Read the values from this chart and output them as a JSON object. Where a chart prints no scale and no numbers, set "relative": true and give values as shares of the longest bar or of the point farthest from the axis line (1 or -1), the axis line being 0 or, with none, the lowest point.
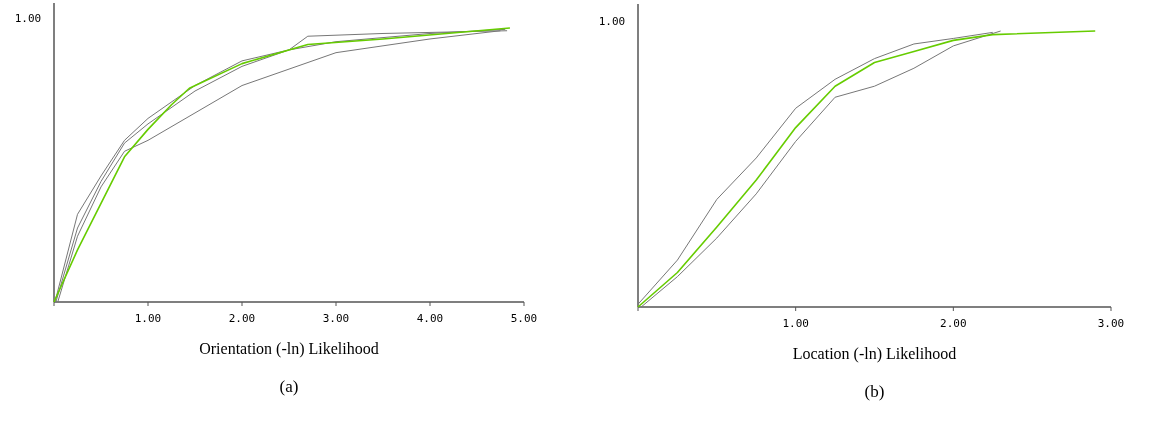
{
  "chart_data": [
    {
      "type": "line",
      "xlabel": "Orientation (-ln) Likelihood",
      "annotations": [
        "1.00",
        "(a)"
      ],
      "xlim": [
        0,
        5
      ],
      "relative": true,
      "xticks": [
        {
          "value": 0,
          "label": null
        },
        {
          "value": 1,
          "label": "1.00"
        },
        {
          "value": 2,
          "label": "2.00"
        },
        {
          "value": 3,
          "label": "3.00"
        },
        {
          "value": 4,
          "label": "4.00"
        },
        {
          "value": 5,
          "label": "5.00"
        }
      ],
      "series": [
        {
          "color": "#777777",
          "x": [
            0.01,
            0.25,
            0.5,
            0.75,
            1.0,
            1.5,
            2.0,
            2.5,
            3.0,
            4.0,
            4.8
          ],
          "values": [
            0,
            0.32,
            0.46,
            0.59,
            0.67,
            0.79,
            0.88,
            0.92,
            0.95,
            0.98,
            0.995
          ]
        },
        {
          "color": "#777777",
          "x": [
            0.04,
            0.25,
            0.5,
            0.75,
            1.0,
            1.5,
            2.0,
            2.5,
            3.0,
            4.0,
            4.75
          ],
          "values": [
            0,
            0.24,
            0.42,
            0.55,
            0.59,
            0.69,
            0.79,
            0.85,
            0.91,
            0.96,
            0.99
          ]
        },
        {
          "color": "#777777",
          "x": [
            0.02,
            0.25,
            0.5,
            0.75,
            1.0,
            1.5,
            2.0,
            2.5,
            2.7,
            3.5,
            4.82
          ],
          "values": [
            0,
            0.27,
            0.44,
            0.58,
            0.65,
            0.77,
            0.86,
            0.92,
            0.97,
            0.98,
            0.99
          ]
        },
        {
          "color": "#66cc00",
          "x": [
            0,
            0.25,
            0.5,
            0.75,
            1.0,
            1.25,
            1.44,
            2.0,
            2.7,
            3.5,
            4.85
          ],
          "values": [
            0,
            0.19,
            0.36,
            0.53,
            0.63,
            0.72,
            0.78,
            0.87,
            0.94,
            0.96,
            1.0
          ]
        }
      ]
    },
    {
      "type": "line",
      "xlabel": "Location (-ln) Likelihood",
      "annotations": [
        "1.00",
        "(b)"
      ],
      "xlim": [
        0,
        3
      ],
      "relative": true,
      "xticks": [
        {
          "value": 0,
          "label": null
        },
        {
          "value": 1,
          "label": "1.00"
        },
        {
          "value": 2,
          "label": "2.00"
        },
        {
          "value": 3,
          "label": "3.00"
        }
      ],
      "series": [
        {
          "color": "#777777",
          "x": [
            0.02,
            0.25,
            0.5,
            0.75,
            1.0,
            1.25,
            1.5,
            1.75,
            2.0,
            2.3
          ],
          "values": [
            0,
            0.11,
            0.25,
            0.41,
            0.6,
            0.76,
            0.8,
            0.865,
            0.946,
            1.0
          ]
        },
        {
          "color": "#777777",
          "x": [
            0,
            0.25,
            0.5,
            0.75,
            1.0,
            1.25,
            1.5,
            1.75,
            2.0,
            2.25
          ],
          "values": [
            0.01,
            0.17,
            0.39,
            0.54,
            0.72,
            0.825,
            0.9,
            0.953,
            0.973,
            0.995
          ]
        },
        {
          "color": "#66cc00",
          "x": [
            0,
            0.25,
            0.5,
            0.75,
            1.0,
            1.25,
            1.5,
            1.75,
            2.0,
            2.25,
            2.9
          ],
          "values": [
            0,
            0.125,
            0.29,
            0.46,
            0.65,
            0.8,
            0.886,
            0.926,
            0.966,
            0.987,
            1.0
          ]
        }
      ]
    }
  ]
}
